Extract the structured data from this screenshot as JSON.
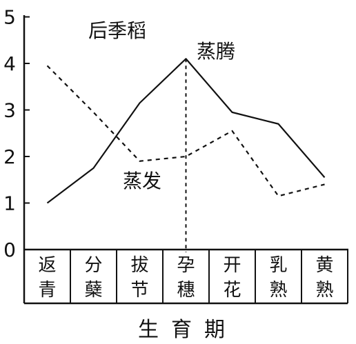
{
  "chart_data": {
    "type": "line",
    "title": "后季稻",
    "xlabel": "生育期",
    "ylabel": "",
    "ylim": [
      0,
      5
    ],
    "yticks": [
      "0",
      "1",
      "2",
      "3",
      "4",
      "5"
    ],
    "categories": [
      [
        "返",
        "青"
      ],
      [
        "分",
        "蘖"
      ],
      [
        "拔",
        "节"
      ],
      [
        "孕",
        "穗"
      ],
      [
        "开",
        "花"
      ],
      [
        "乳",
        "熟"
      ],
      [
        "黄",
        "熟"
      ]
    ],
    "series": [
      {
        "name": "蒸腾",
        "style": "solid",
        "color": "#111111",
        "values": [
          1.0,
          1.75,
          3.15,
          4.1,
          2.95,
          2.7,
          1.55
        ]
      },
      {
        "name": "蒸发",
        "style": "dashed",
        "color": "#111111",
        "values": [
          3.95,
          2.95,
          1.9,
          2.0,
          2.55,
          1.15,
          1.4
        ]
      }
    ],
    "reference_line": {
      "category_index": 3,
      "style": "dashed"
    },
    "grid": false
  }
}
